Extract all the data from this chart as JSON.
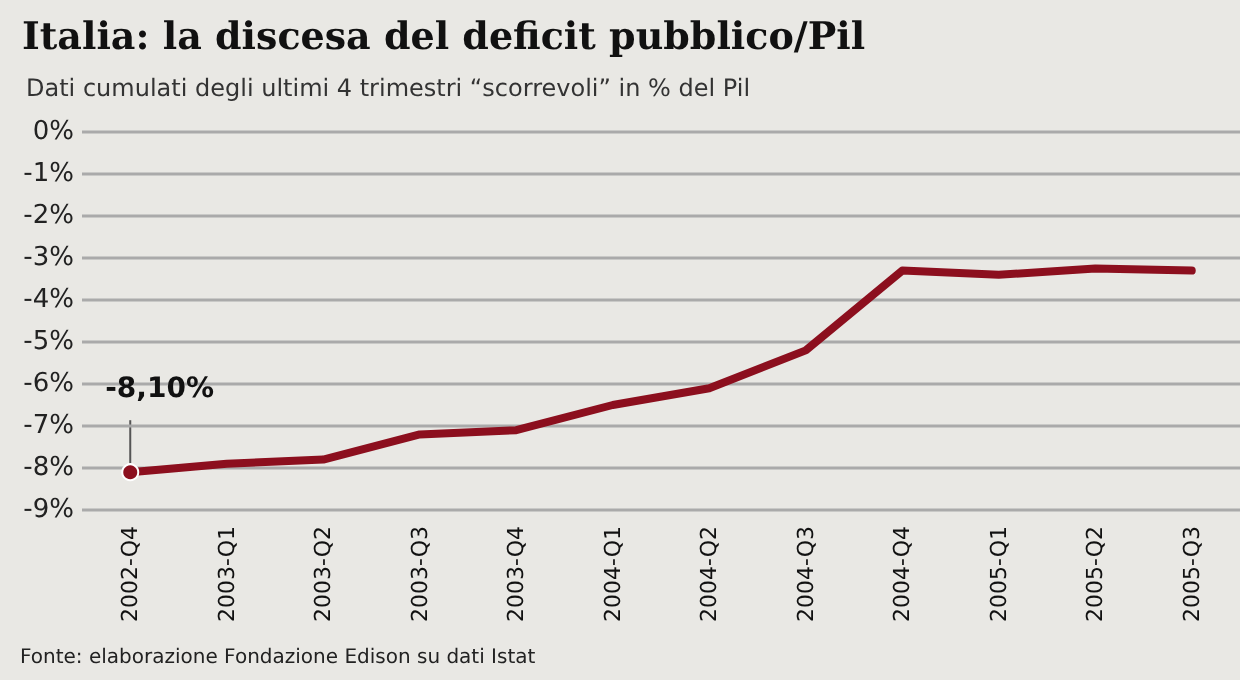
{
  "chart_data": {
    "type": "line",
    "title": "Italia: la discesa del deficit pubblico/Pil",
    "subtitle": "Dati cumulati degli ultimi 4 trimestri “scorrevoli” in % del Pil",
    "categories": [
      "2002-Q4",
      "2003-Q1",
      "2003-Q2",
      "2003-Q3",
      "2003-Q4",
      "2004-Q1",
      "2004-Q2",
      "2004-Q3",
      "2004-Q4",
      "2005-Q1",
      "2005-Q2",
      "2005-Q3"
    ],
    "series": [
      {
        "color": "#8c0f1e",
        "values": [
          -8.1,
          -7.9,
          -7.8,
          -7.2,
          -7.1,
          -6.5,
          -6.1,
          -5.2,
          -3.3,
          -3.4,
          -3.25,
          -3.3
        ]
      }
    ],
    "ylim": [
      -9,
      0
    ],
    "yticks": [
      {
        "value": 0,
        "label": "0%"
      },
      {
        "value": -1,
        "label": "-1%"
      },
      {
        "value": -2,
        "label": "-2%"
      },
      {
        "value": -3,
        "label": "-3%"
      },
      {
        "value": -4,
        "label": "-4%"
      },
      {
        "value": -5,
        "label": "-5%"
      },
      {
        "value": -6,
        "label": "-6%"
      },
      {
        "value": -7,
        "label": "-7%"
      },
      {
        "value": -8,
        "label": "-8%"
      },
      {
        "value": -9,
        "label": "-9%"
      }
    ],
    "grid": "y",
    "marker": "none",
    "line_style": "solid",
    "annotations": [
      {
        "text": "-8,10%",
        "x": "2002-Q4",
        "y": -8.1
      },
      "Fonte: elaborazione Fondazione Edison su dati Istat"
    ]
  }
}
